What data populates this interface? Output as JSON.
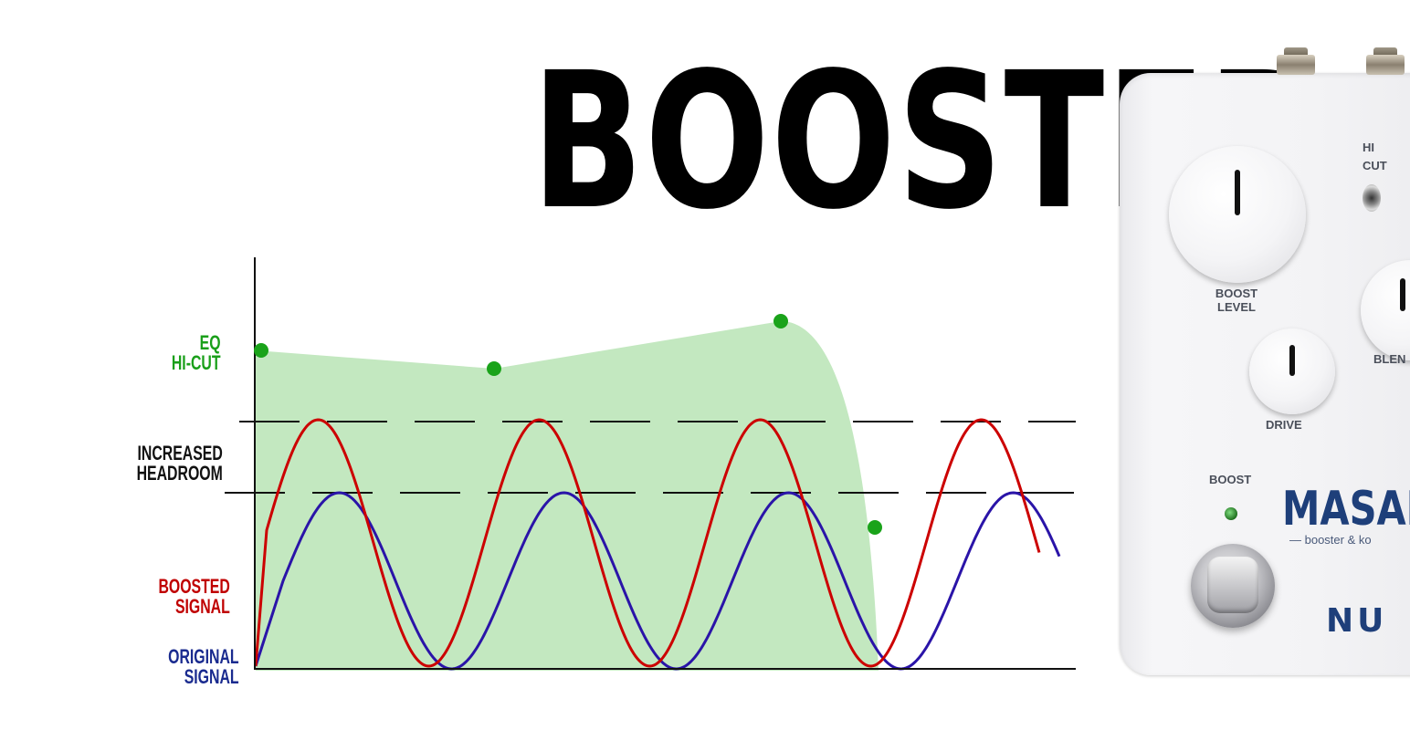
{
  "title": "BOOSTER",
  "labels": {
    "eq": [
      "EQ",
      "HI-CUT"
    ],
    "headroom": [
      "INCREASED",
      "HEADROOM"
    ],
    "boosted": [
      "BOOSTED",
      "SIGNAL"
    ],
    "original": [
      "ORIGINAL",
      "SIGNAL"
    ]
  },
  "colors": {
    "eq": "#1a9f1a",
    "eq_fill": "#c3e8c0",
    "boosted": "#cc0000",
    "original": "#2a14a8",
    "axis": "#111111"
  },
  "pedal": {
    "labels": {
      "hi": "HI",
      "cut": "CUT",
      "boost_level": [
        "BOOST",
        "LEVEL"
      ],
      "blend": "BLEN",
      "drive": "DRIVE",
      "boost": "BOOST"
    },
    "brand": "MASAI",
    "subtitle": "— booster & ko",
    "maker": "NU"
  }
}
